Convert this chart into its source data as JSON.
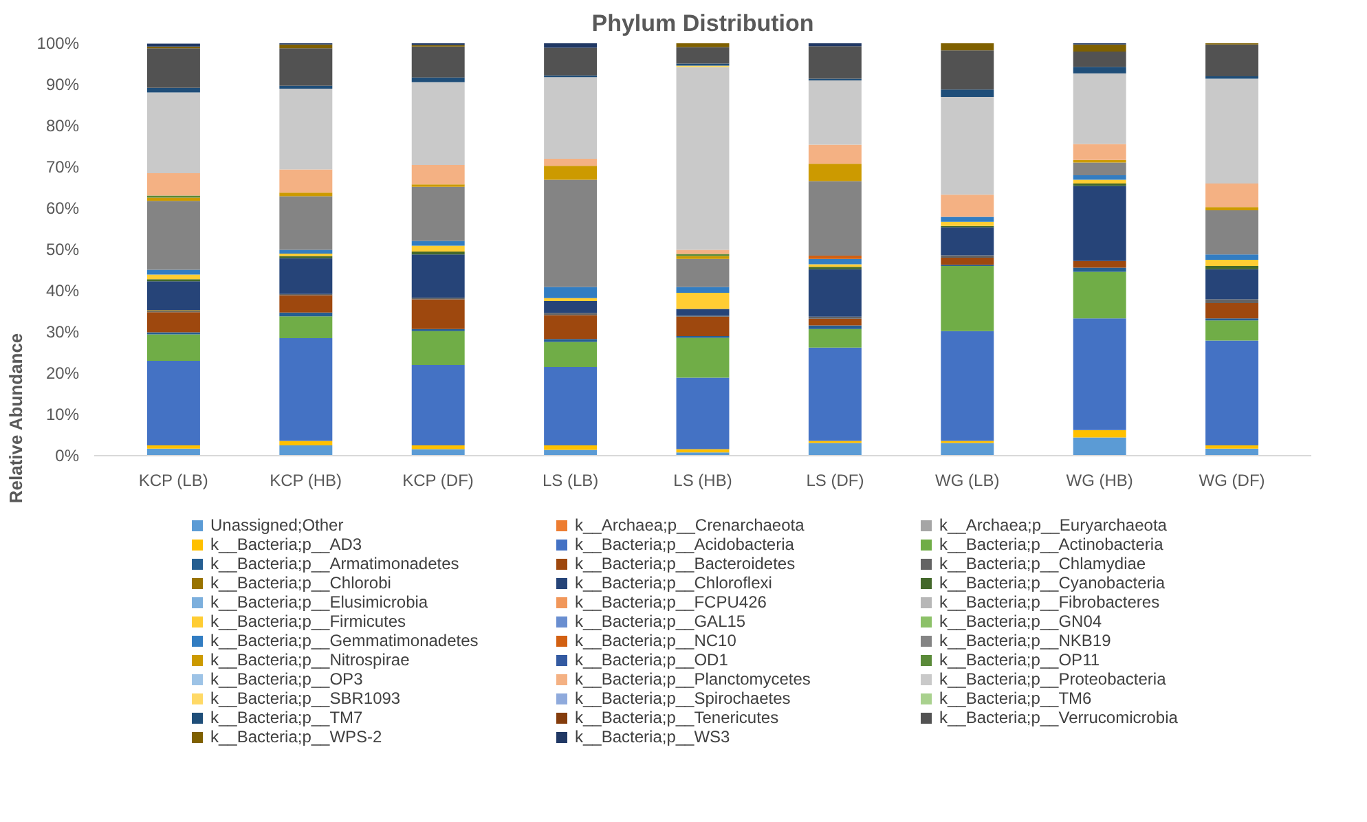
{
  "chart_data": {
    "type": "bar",
    "stacked": true,
    "title": "Phylum Distribution",
    "ylabel": "Relative Abundance",
    "categories": [
      "KCP (LB)",
      "KCP (HB)",
      "KCP (DF)",
      "LS (LB)",
      "LS (HB)",
      "LS (DF)",
      "WG (LB)",
      "WG (HB)",
      "WG (DF)"
    ],
    "ylim": [
      0,
      100
    ],
    "yticks": [
      {
        "value": 0,
        "label": "0%"
      },
      {
        "value": 10,
        "label": "10%"
      },
      {
        "value": 20,
        "label": "20%"
      },
      {
        "value": 30,
        "label": "30%"
      },
      {
        "value": 40,
        "label": "40%"
      },
      {
        "value": 50,
        "label": "50%"
      },
      {
        "value": 60,
        "label": "60%"
      },
      {
        "value": 70,
        "label": "70%"
      },
      {
        "value": 80,
        "label": "80%"
      },
      {
        "value": 90,
        "label": "90%"
      },
      {
        "value": 100,
        "label": "100%"
      }
    ],
    "grid": false,
    "legend": "bottom",
    "series": [
      {
        "name": "Unassigned;Other",
        "color": "#5b9bd5",
        "values": [
          1.7,
          2.5,
          1.6,
          1.4,
          0.8,
          3.1,
          3.1,
          4.4,
          1.7
        ]
      },
      {
        "name": "k__Archaea;p__Crenarchaeota",
        "color": "#ed7d31",
        "values": [
          0,
          0,
          0,
          0,
          0,
          0,
          0,
          0,
          0
        ]
      },
      {
        "name": "k__Archaea;p__Euryarchaeota",
        "color": "#a5a5a5",
        "values": [
          0,
          0,
          0,
          0,
          0,
          0,
          0,
          0,
          0
        ]
      },
      {
        "name": "k__Bacteria;p__AD3",
        "color": "#ffc000",
        "values": [
          0.8,
          1.1,
          0.9,
          1.1,
          0.8,
          0.5,
          0.5,
          1.8,
          0.8
        ]
      },
      {
        "name": "k__Bacteria;p__Acidobacteria",
        "color": "#4472c4",
        "values": [
          20.5,
          24.9,
          19.5,
          19.0,
          17.3,
          22.6,
          26.6,
          27.1,
          25.4
        ]
      },
      {
        "name": "k__Bacteria;p__Actinobacteria",
        "color": "#70ad47",
        "values": [
          6.4,
          5.3,
          8.2,
          6.1,
          9.7,
          4.5,
          15.8,
          11.3,
          4.9
        ]
      },
      {
        "name": "k__Bacteria;p__Armatimonadetes",
        "color": "#255e91",
        "values": [
          0.5,
          0.9,
          0.5,
          0.7,
          0.4,
          0.9,
          0.3,
          1.0,
          0.5
        ]
      },
      {
        "name": "k__Bacteria;p__Bacteroidetes",
        "color": "#9e480e",
        "values": [
          4.9,
          4.2,
          7.2,
          5.8,
          4.7,
          1.6,
          1.7,
          1.6,
          3.7
        ]
      },
      {
        "name": "k__Bacteria;p__Chlamydiae",
        "color": "#636363",
        "values": [
          0.3,
          0.3,
          0.4,
          0.5,
          0.2,
          0.5,
          0.6,
          0,
          0.9
        ]
      },
      {
        "name": "k__Bacteria;p__Chlorobi",
        "color": "#997300",
        "values": [
          0.2,
          0,
          0,
          0,
          0,
          0,
          0,
          0,
          0
        ]
      },
      {
        "name": "k__Bacteria;p__Chloroflexi",
        "color": "#264478",
        "values": [
          7.0,
          8.7,
          10.5,
          2.9,
          1.7,
          11.5,
          6.8,
          18.2,
          7.3
        ]
      },
      {
        "name": "k__Bacteria;p__Cyanobacteria",
        "color": "#43682b",
        "values": [
          0.5,
          0.5,
          0.7,
          0,
          0,
          0.6,
          0.3,
          0.6,
          0.8
        ]
      },
      {
        "name": "k__Bacteria;p__Elusimicrobia",
        "color": "#7cafdd",
        "values": [
          0,
          0,
          0,
          0,
          0,
          0,
          0,
          0,
          0
        ]
      },
      {
        "name": "k__Bacteria;p__FCPU426",
        "color": "#f1975a",
        "values": [
          0,
          0,
          0,
          0,
          0,
          0,
          0,
          0,
          0
        ]
      },
      {
        "name": "k__Bacteria;p__Fibrobacteres",
        "color": "#b7b7b7",
        "values": [
          0,
          0,
          0,
          0,
          0,
          0,
          0,
          0,
          0
        ]
      },
      {
        "name": "k__Bacteria;p__Firmicutes",
        "color": "#ffcd33",
        "values": [
          1.1,
          0.6,
          1.4,
          0.7,
          3.9,
          0.6,
          1.0,
          0.9,
          1.5
        ]
      },
      {
        "name": "k__Bacteria;p__GAL15",
        "color": "#698ed0",
        "values": [
          0,
          0,
          0,
          0,
          0,
          0,
          0,
          0,
          0
        ]
      },
      {
        "name": "k__Bacteria;p__GN04",
        "color": "#8cc168",
        "values": [
          0,
          0,
          0,
          0,
          0,
          0,
          0,
          0,
          0
        ]
      },
      {
        "name": "k__Bacteria;p__Gemmatimonadetes",
        "color": "#327dc2",
        "values": [
          1.2,
          0.9,
          1.2,
          2.7,
          1.4,
          1.3,
          1.2,
          1.1,
          1.3
        ]
      },
      {
        "name": "k__Bacteria;p__NC10",
        "color": "#d26012",
        "values": [
          0,
          0,
          0,
          0,
          0,
          0.8,
          0,
          0,
          0
        ]
      },
      {
        "name": "k__Bacteria;p__NKB19",
        "color": "#848484",
        "values": [
          16.7,
          13.0,
          13.1,
          26.0,
          6.8,
          18.1,
          0,
          3.1,
          10.7
        ]
      },
      {
        "name": "k__Bacteria;p__Nitrospirae",
        "color": "#cc9a00",
        "values": [
          0.8,
          0.9,
          0.6,
          3.4,
          0.7,
          4.2,
          0,
          0.6,
          0.8
        ]
      },
      {
        "name": "k__Bacteria;p__OD1",
        "color": "#335aa1",
        "values": [
          0,
          0,
          0,
          0,
          0,
          0,
          0,
          0,
          0
        ]
      },
      {
        "name": "k__Bacteria;p__OP11",
        "color": "#5a8a39",
        "values": [
          0.5,
          0,
          0,
          0,
          0.5,
          0,
          0,
          0,
          0
        ]
      },
      {
        "name": "k__Bacteria;p__OP3",
        "color": "#9dc3e6",
        "values": [
          0,
          0,
          0,
          0,
          0,
          0,
          0,
          0,
          0
        ]
      },
      {
        "name": "k__Bacteria;p__Planctomycetes",
        "color": "#f4b183",
        "values": [
          5.4,
          5.6,
          4.7,
          1.7,
          1.0,
          4.6,
          5.4,
          3.9,
          5.7
        ]
      },
      {
        "name": "k__Bacteria;p__Proteobacteria",
        "color": "#c9c9c9",
        "values": [
          19.6,
          19.6,
          20.1,
          19.8,
          44.3,
          15.6,
          23.7,
          17.1,
          25.4
        ]
      },
      {
        "name": "k__Bacteria;p__SBR1093",
        "color": "#ffd966",
        "values": [
          0,
          0,
          0,
          0,
          0.4,
          0,
          0,
          0,
          0
        ]
      },
      {
        "name": "k__Bacteria;p__Spirochaetes",
        "color": "#8faadc",
        "values": [
          0,
          0,
          0,
          0,
          0,
          0,
          0,
          0,
          0
        ]
      },
      {
        "name": "k__Bacteria;p__TM6",
        "color": "#a9d18e",
        "values": [
          0,
          0,
          0,
          0,
          0,
          0,
          0,
          0,
          0
        ]
      },
      {
        "name": "k__Bacteria;p__TM7",
        "color": "#1f4e79",
        "values": [
          1.1,
          0.7,
          1.1,
          0.4,
          0.5,
          0.4,
          1.8,
          1.6,
          0.6
        ]
      },
      {
        "name": "k__Bacteria;p__Tenericutes",
        "color": "#843c0c",
        "values": [
          0,
          0,
          0,
          0,
          0,
          0,
          0,
          0,
          0
        ]
      },
      {
        "name": "k__Bacteria;p__Verrucomicrobia",
        "color": "#525252",
        "values": [
          9.6,
          9.1,
          7.5,
          6.7,
          4.0,
          7.9,
          9.5,
          3.7,
          7.7
        ]
      },
      {
        "name": "k__Bacteria;p__WPS-2",
        "color": "#7f6000",
        "values": [
          0.4,
          0.9,
          0.4,
          0,
          0.9,
          0,
          1.7,
          1.7,
          0.3
        ]
      },
      {
        "name": "k__Bacteria;p__WS3",
        "color": "#203864",
        "values": [
          0.7,
          0.3,
          0.4,
          1.1,
          0,
          0.7,
          0,
          0.3,
          0
        ]
      }
    ]
  }
}
